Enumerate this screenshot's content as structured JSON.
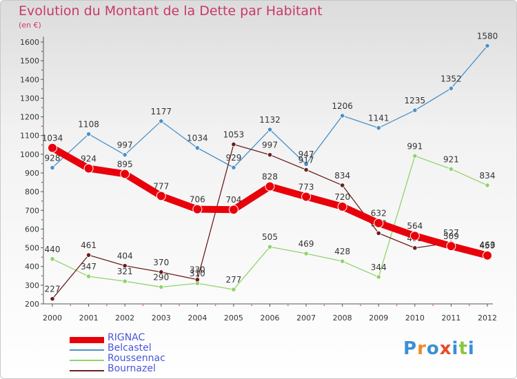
{
  "title": "Evolution du Montant de la Dette par Habitant",
  "subtitle": "(en €)",
  "logo": {
    "text": "Proxiti",
    "colors": [
      "#3a8fd8",
      "#f08a24",
      "#3a8fd8",
      "#e84a2a",
      "#3a8fd8",
      "#8cc63f",
      "#3a8fd8"
    ]
  },
  "chart_data": {
    "type": "line",
    "x": [
      2000,
      2001,
      2002,
      2003,
      2004,
      2005,
      2006,
      2007,
      2008,
      2009,
      2010,
      2011,
      2012
    ],
    "ylim": [
      200,
      1600
    ],
    "yticks": [
      200,
      300,
      400,
      500,
      600,
      700,
      800,
      900,
      1000,
      1100,
      1200,
      1300,
      1400,
      1500,
      1600
    ],
    "grid": false,
    "legend": "bottom-left",
    "series": [
      {
        "name": "Belcastel",
        "color": "#4a90c8",
        "values": [
          928,
          1108,
          997,
          1177,
          1034,
          929,
          1132,
          947,
          1206,
          1141,
          1235,
          1352,
          1580
        ]
      },
      {
        "name": "Roussennac",
        "color": "#8ed46a",
        "values": [
          440,
          347,
          321,
          290,
          310,
          277,
          505,
          469,
          428,
          344,
          991,
          921,
          834
        ]
      },
      {
        "name": "Bournazel",
        "color": "#6b1e1e",
        "values": [
          227,
          461,
          404,
          370,
          330,
          1053,
          997,
          917,
          834,
          578,
          499,
          527,
          463
        ]
      },
      {
        "name": "RIGNAC",
        "color": "#e8000a",
        "values": [
          1034,
          924,
          895,
          777,
          706,
          704,
          828,
          773,
          720,
          632,
          564,
          509,
          459
        ]
      }
    ]
  }
}
